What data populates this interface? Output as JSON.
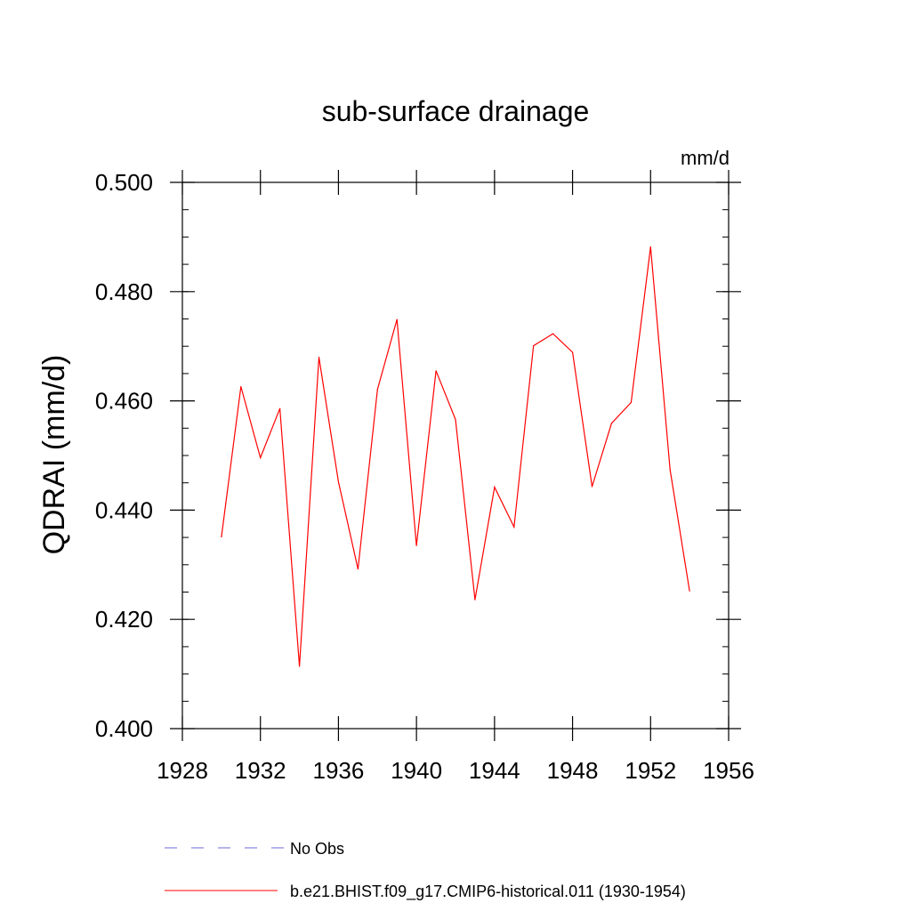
{
  "chart_data": {
    "type": "line",
    "title": "sub-surface drainage",
    "units_label": "mm/d",
    "ylabel": "QDRAI  (mm/d)",
    "xlabel": "",
    "xlim": [
      1928,
      1956
    ],
    "ylim": [
      0.4,
      0.5
    ],
    "x_ticks": [
      "1928",
      "1932",
      "1936",
      "1940",
      "1944",
      "1948",
      "1952",
      "1956"
    ],
    "y_ticks": [
      "0.400",
      "0.420",
      "0.440",
      "0.460",
      "0.480",
      "0.500"
    ],
    "grid": false,
    "x": [
      1930,
      1931,
      1932,
      1933,
      1934,
      1935,
      1936,
      1937,
      1938,
      1939,
      1940,
      1941,
      1942,
      1943,
      1944,
      1945,
      1946,
      1947,
      1948,
      1949,
      1950,
      1951,
      1952,
      1953,
      1954
    ],
    "series": [
      {
        "name": "b.e21.BHIST.f09_g17.CMIP6-historical.011 (1930-1954)",
        "color": "#ff0000",
        "values": [
          0.4351,
          0.4626,
          0.4496,
          0.4586,
          0.4114,
          0.468,
          0.4452,
          0.4292,
          0.4621,
          0.4749,
          0.4335,
          0.4655,
          0.4566,
          0.4236,
          0.4442,
          0.4369,
          0.4701,
          0.4723,
          0.4689,
          0.4443,
          0.4559,
          0.4597,
          0.4882,
          0.4474,
          0.4252
        ]
      }
    ],
    "legend": {
      "placement": "bottom",
      "entries": [
        {
          "label": "No Obs",
          "color": "#6b6bd6",
          "style": "dashed"
        },
        {
          "label": "b.e21.BHIST.f09_g17.CMIP6-historical.011 (1930-1954)",
          "color": "#ff0000",
          "style": "solid"
        }
      ]
    }
  }
}
